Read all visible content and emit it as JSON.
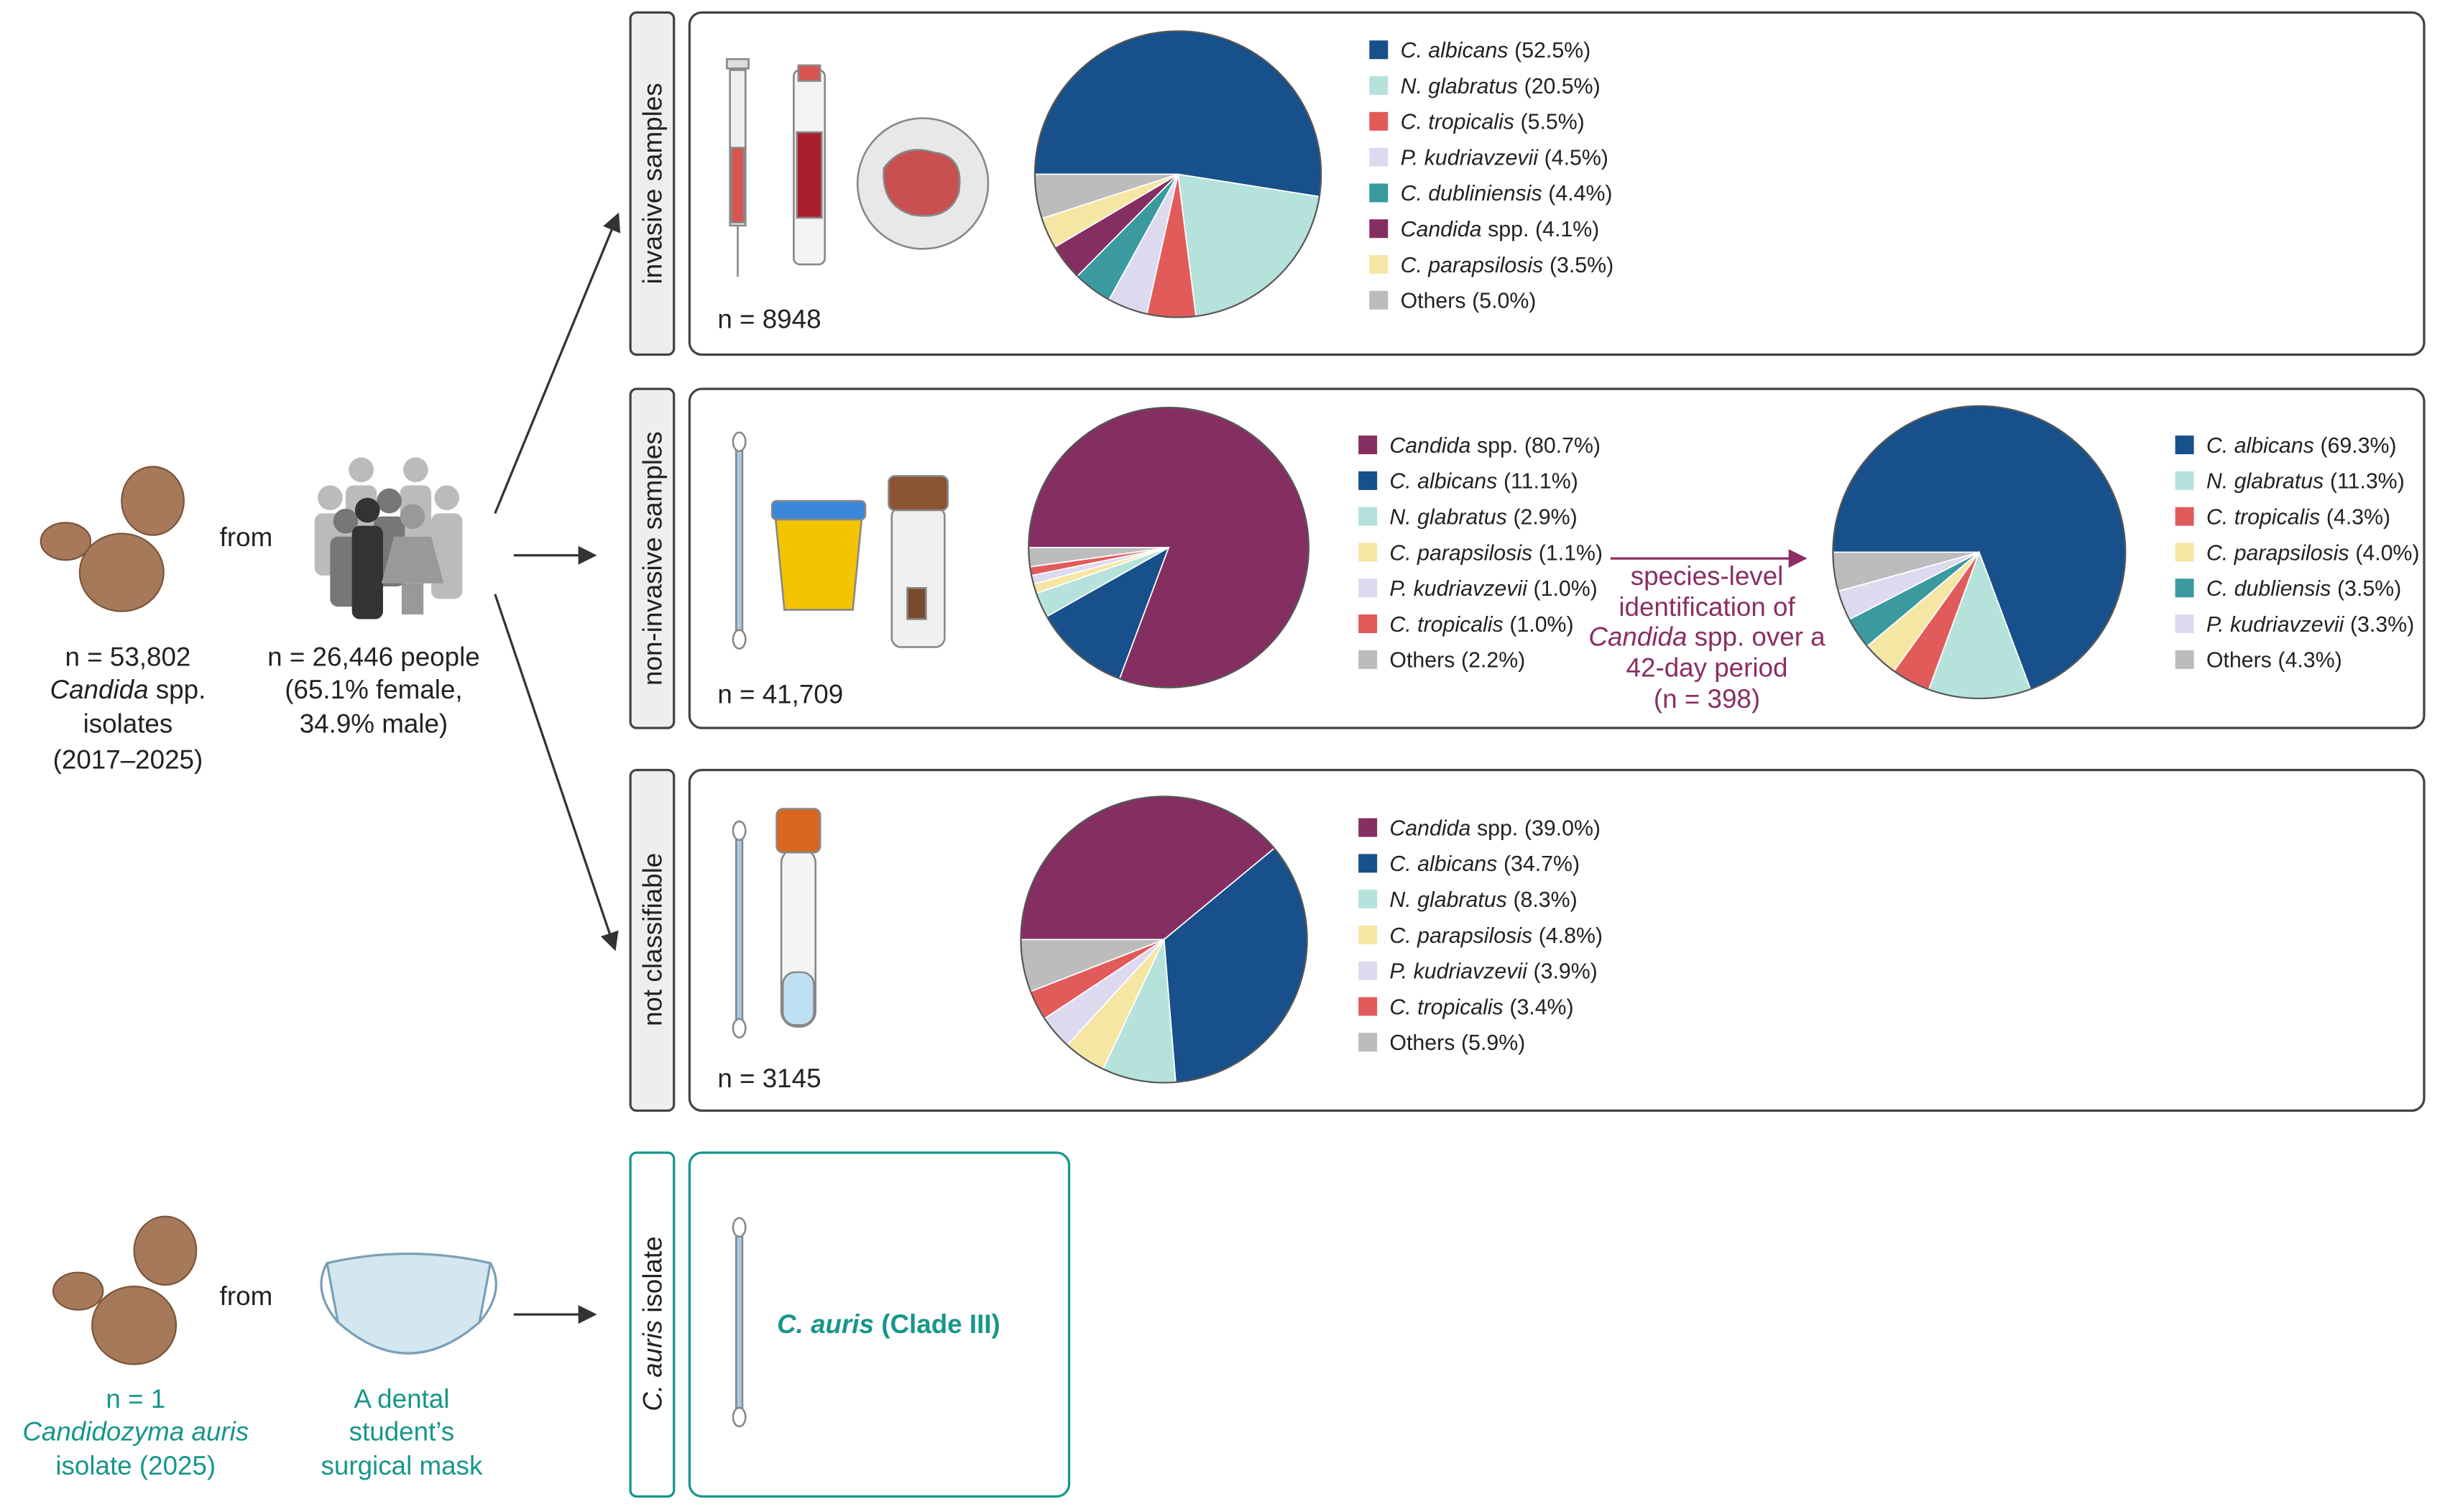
{
  "source": {
    "count": "n = 53,802",
    "genus": "Candida",
    "genus_suffix": "spp.",
    "noun": "isolates",
    "period": "(2017–2025)",
    "from": "from",
    "people": "n = 26,446 people",
    "female": "(65.1% female,",
    "male": "34.9% male)"
  },
  "auris_source": {
    "count": "n = 1",
    "species": "Candidozyma auris",
    "noun": "isolate (2025)",
    "from": "from",
    "mask1": "A dental",
    "mask2": "student’s",
    "mask3": "surgical mask"
  },
  "panels": [
    {
      "label": "invasive samples",
      "n": "n = 8948",
      "pies": [
        {
          "slices": [
            {
              "italic": "C. albicans",
              "value": 52.5,
              "value_label": "(52.5%)",
              "color": "#17508a"
            },
            {
              "italic": "N. glabratus",
              "value": 20.5,
              "value_label": "(20.5%)",
              "color": "#b6e2dc"
            },
            {
              "italic": "C. tropicalis",
              "value": 5.5,
              "value_label": "(5.5%)",
              "color": "#e25b5b"
            },
            {
              "italic": "P. kudriavzevii",
              "value": 4.5,
              "value_label": "(4.5%)",
              "color": "#dddaf0"
            },
            {
              "italic": "C. dubliniensis",
              "value": 4.4,
              "value_label": "(4.4%)",
              "color": "#3a9a9f"
            },
            {
              "italic": "Candida",
              "text": "spp.",
              "value": 4.1,
              "value_label": "(4.1%)",
              "color": "#852e62"
            },
            {
              "italic": "C. parapsilosis",
              "value": 3.5,
              "value_label": "(3.5%)",
              "color": "#f6e6a4"
            },
            {
              "text": "Others",
              "value": 5.0,
              "value_label": "(5.0%)",
              "color": "#bcbcbc"
            }
          ]
        }
      ]
    },
    {
      "label": "non-invasive samples",
      "n": "n = 41,709",
      "pies": [
        {
          "slices": [
            {
              "italic": "Candida",
              "text": "spp.",
              "value": 80.7,
              "value_label": "(80.7%)",
              "color": "#852e62"
            },
            {
              "italic": "C. albicans",
              "value": 11.1,
              "value_label": "(11.1%)",
              "color": "#17508a"
            },
            {
              "italic": "N. glabratus",
              "value": 2.9,
              "value_label": "(2.9%)",
              "color": "#b6e2dc"
            },
            {
              "italic": "C. parapsilosis",
              "value": 1.1,
              "value_label": "(1.1%)",
              "color": "#f6e6a4"
            },
            {
              "italic": "P. kudriavzevii",
              "value": 1.0,
              "value_label": "(1.0%)",
              "color": "#dddaf0"
            },
            {
              "italic": "C. tropicalis",
              "value": 1.0,
              "value_label": "(1.0%)",
              "color": "#e25b5b"
            },
            {
              "text": "Others",
              "value": 2.2,
              "value_label": "(2.2%)",
              "color": "#bcbcbc"
            }
          ]
        },
        {
          "slices": [
            {
              "italic": "C. albicans",
              "value": 69.3,
              "value_label": "(69.3%)",
              "color": "#17508a"
            },
            {
              "italic": "N. glabratus",
              "value": 11.3,
              "value_label": "(11.3%)",
              "color": "#b6e2dc"
            },
            {
              "italic": "C. tropicalis",
              "value": 4.3,
              "value_label": "(4.3%)",
              "color": "#e25b5b"
            },
            {
              "italic": "C. parapsilosis",
              "value": 4.0,
              "value_label": "(4.0%)",
              "color": "#f6e6a4"
            },
            {
              "italic": "C. dubliensis",
              "value": 3.5,
              "value_label": "(3.5%)",
              "color": "#3a9a9f"
            },
            {
              "italic": "P. kudriavzevii",
              "value": 3.3,
              "value_label": "(3.3%)",
              "color": "#dddaf0"
            },
            {
              "text": "Others",
              "value": 4.3,
              "value_label": "(4.3%)",
              "color": "#bcbcbc"
            }
          ]
        }
      ],
      "arrow_text": {
        "line1": "species-level",
        "line2": "identification of",
        "genus": "Candida",
        "line3": "spp. over a",
        "line4": "42-day period",
        "line5": "(n = 398)"
      }
    },
    {
      "label": "not classifiable",
      "n": "n = 3145",
      "pies": [
        {
          "slices": [
            {
              "italic": "Candida",
              "text": "spp.",
              "value": 39.0,
              "value_label": "(39.0%)",
              "color": "#852e62"
            },
            {
              "italic": "C. albicans",
              "value": 34.7,
              "value_label": "(34.7%)",
              "color": "#17508a"
            },
            {
              "italic": "N. glabratus",
              "value": 8.3,
              "value_label": "(8.3%)",
              "color": "#b6e2dc"
            },
            {
              "italic": "C. parapsilosis",
              "value": 4.8,
              "value_label": "(4.8%)",
              "color": "#f6e6a4"
            },
            {
              "italic": "P. kudriavzevii",
              "value": 3.9,
              "value_label": "(3.9%)",
              "color": "#dddaf0"
            },
            {
              "italic": "C. tropicalis",
              "value": 3.4,
              "value_label": "(3.4%)",
              "color": "#e25b5b"
            },
            {
              "text": "Others",
              "value": 5.9,
              "value_label": "(5.9%)",
              "color": "#bcbcbc"
            }
          ]
        }
      ]
    }
  ],
  "auris_panel": {
    "label_italic": "C. auris",
    "label_rest": "isolate",
    "result_italic": "C. auris",
    "result_rest": "(Clade III)"
  }
}
